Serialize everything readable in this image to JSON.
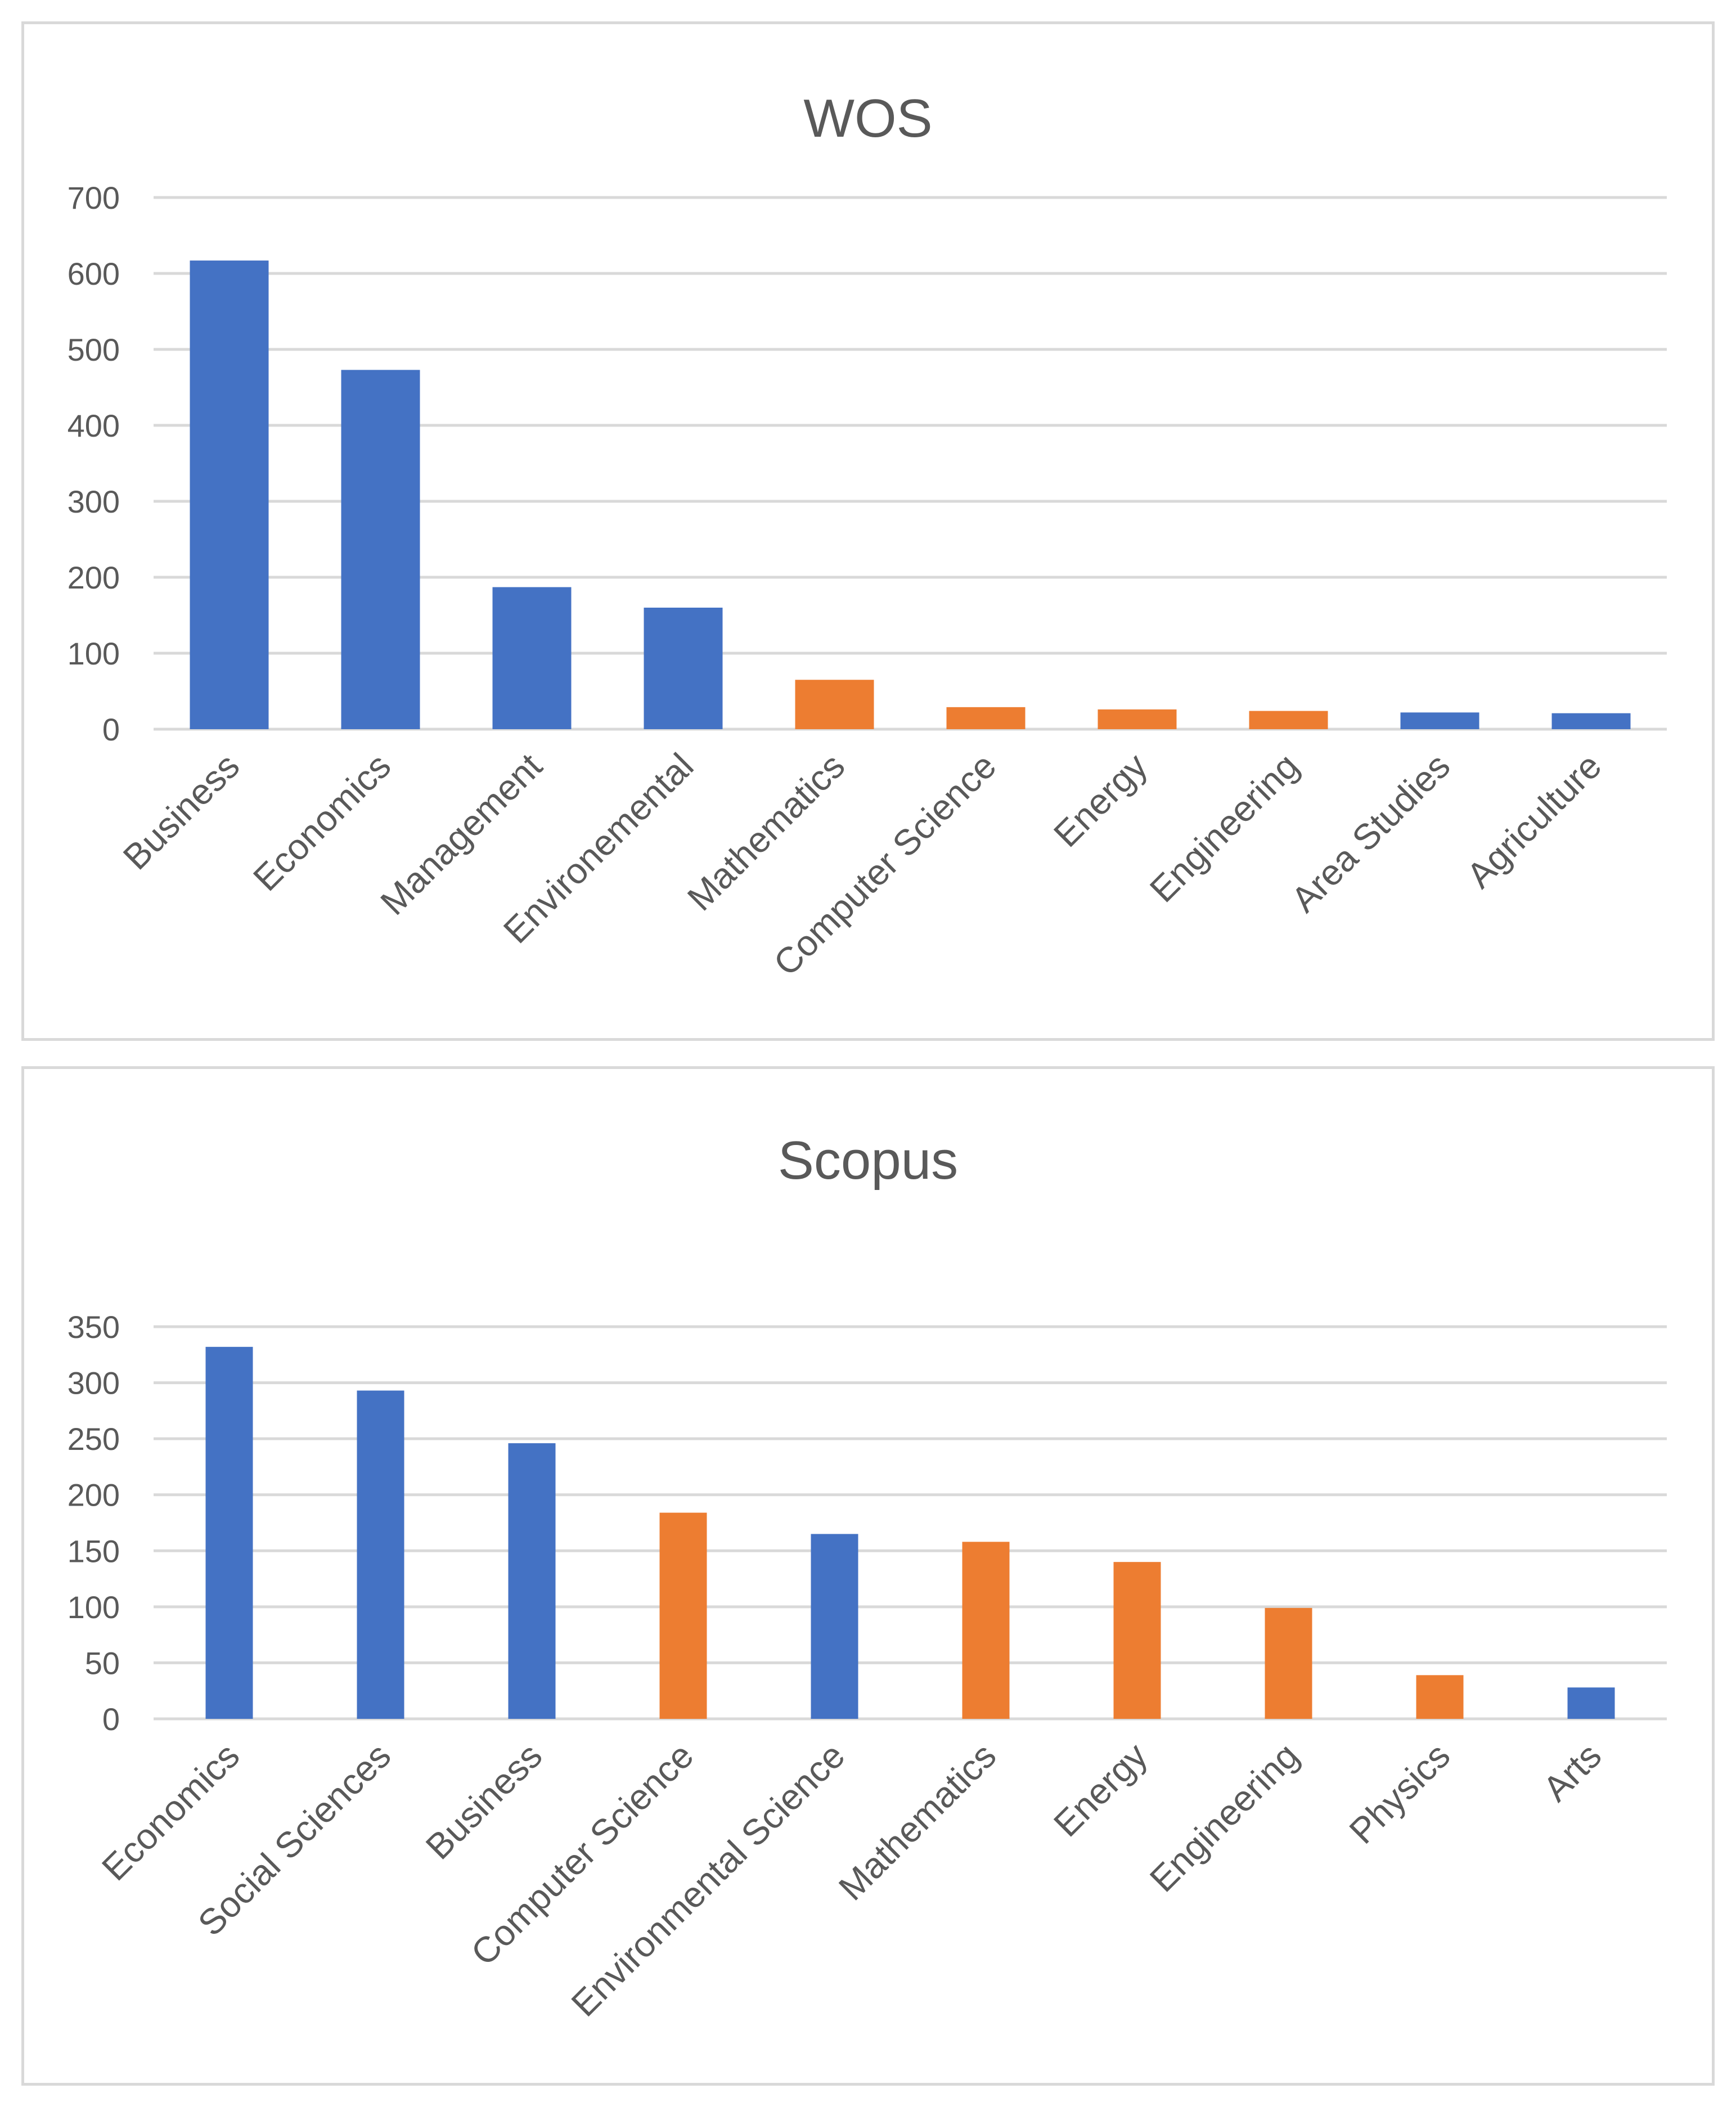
{
  "colors": {
    "blue": "#4472c4",
    "orange": "#ed7d31",
    "grid": "#d9d9d9",
    "text": "#595959"
  },
  "chart_data": [
    {
      "type": "bar",
      "title": "WOS",
      "xlabel": "",
      "ylabel": "",
      "ylim": [
        0,
        700
      ],
      "yticks": [
        0,
        100,
        200,
        300,
        400,
        500,
        600,
        700
      ],
      "grid": true,
      "legend": "none",
      "categories": [
        "Business",
        "Economics",
        "Management",
        "Environemental",
        "Mathematics",
        "Computer Science",
        "Energy",
        "Engineering",
        "Area Studies",
        "Agriculture"
      ],
      "values": [
        617,
        473,
        187,
        160,
        65,
        29,
        26,
        24,
        22,
        21
      ],
      "bar_colors": [
        "blue",
        "blue",
        "blue",
        "blue",
        "orange",
        "orange",
        "orange",
        "orange",
        "blue",
        "blue"
      ]
    },
    {
      "type": "bar",
      "title": "Scopus",
      "xlabel": "",
      "ylabel": "",
      "ylim": [
        0,
        350
      ],
      "yticks": [
        0,
        50,
        100,
        150,
        200,
        250,
        300,
        350
      ],
      "grid": true,
      "legend": "none",
      "categories": [
        "Economics",
        "Social Sciences",
        "Business",
        "Computer Science",
        "Environmental Science",
        "Mathematics",
        "Energy",
        "Engineering",
        "Physics",
        "Arts"
      ],
      "values": [
        332,
        293,
        246,
        184,
        165,
        158,
        140,
        99,
        39,
        28
      ],
      "bar_colors": [
        "blue",
        "blue",
        "blue",
        "orange",
        "blue",
        "orange",
        "orange",
        "orange",
        "orange",
        "blue"
      ]
    }
  ]
}
